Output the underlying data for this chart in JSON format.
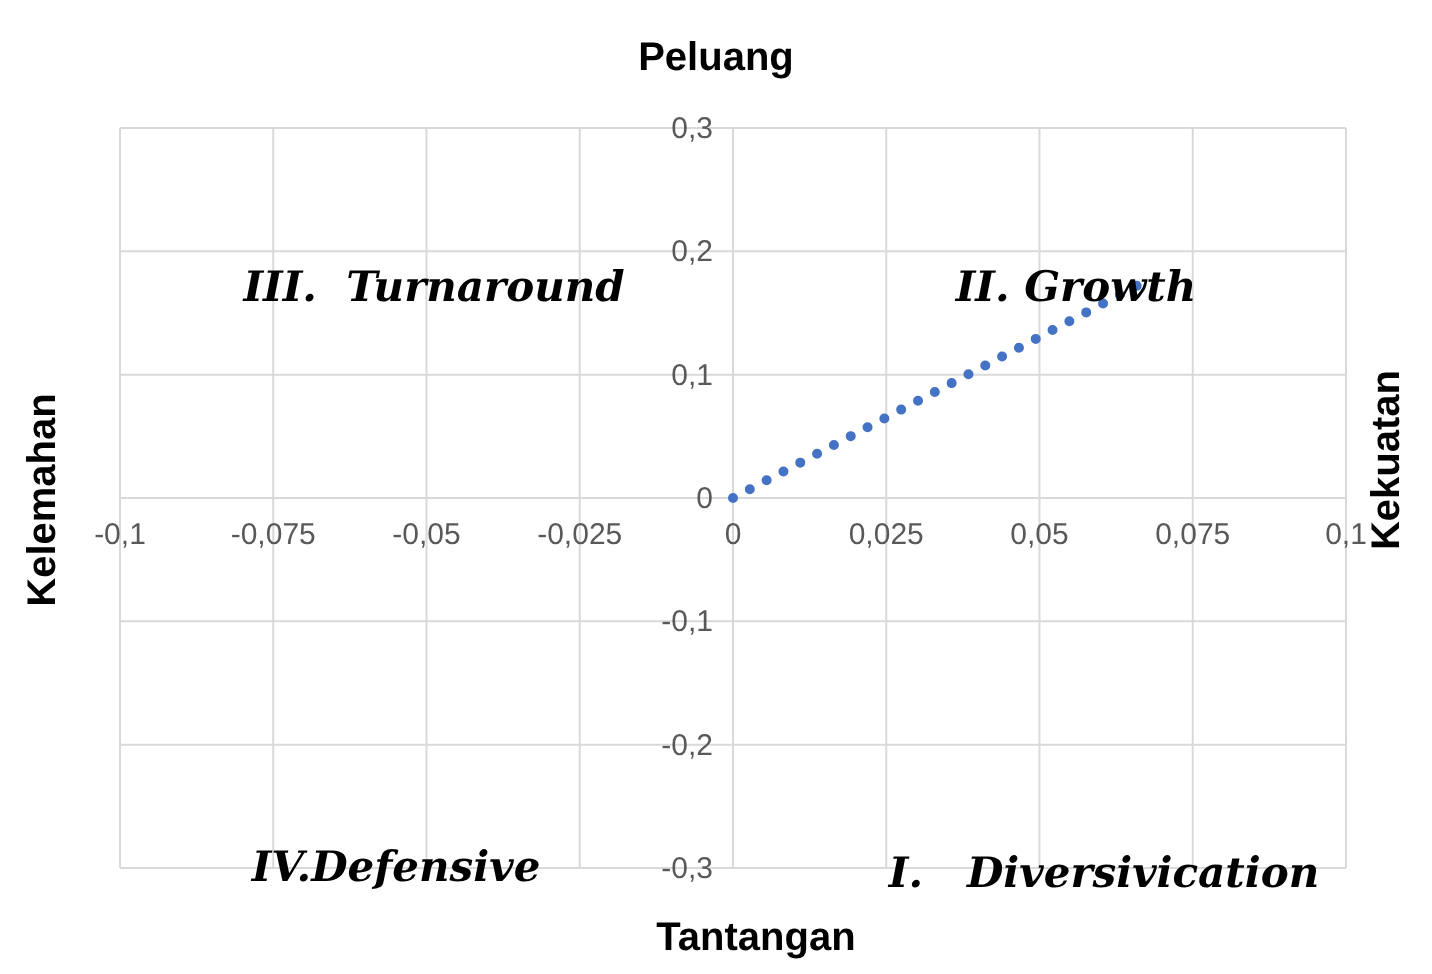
{
  "chart_data": {
    "type": "line",
    "title": "Peluang",
    "xlabel": "Tantangan",
    "ylabel": "Kelemahan",
    "y2label": "Kekuatan",
    "annotations": [
      "III.  Turnaround",
      "II. Growth",
      "IV.Defensive",
      "I.   Diversivication"
    ],
    "x": [
      0,
      0.067
    ],
    "series": [
      {
        "color": "#4472c4",
        "values": [
          0,
          0.175
        ]
      }
    ],
    "xlim": [
      -0.1,
      0.1
    ],
    "xticks": [
      {
        "value": -0.1,
        "label": "-0,1"
      },
      {
        "value": -0.075,
        "label": "-0,075"
      },
      {
        "value": -0.05,
        "label": "-0,05"
      },
      {
        "value": -0.025,
        "label": "-0,025"
      },
      0,
      {
        "value": 0.025,
        "label": "0,025"
      },
      {
        "value": 0.05,
        "label": "0,05"
      },
      {
        "value": 0.075,
        "label": "0,075"
      },
      {
        "value": 0.1,
        "label": "0,1"
      }
    ],
    "ylim": [
      -0.3,
      0.3
    ],
    "yticks": [
      {
        "value": -0.3,
        "label": "-0,3"
      },
      {
        "value": -0.2,
        "label": "-0,2"
      },
      {
        "value": -0.1,
        "label": "-0,1"
      },
      0,
      {
        "value": 0.1,
        "label": "0,1"
      },
      {
        "value": 0.2,
        "label": "0,2"
      },
      {
        "value": 0.3,
        "label": "0,3"
      }
    ],
    "grid": true,
    "legend": false,
    "marker": "none",
    "line_style": "dotted"
  }
}
